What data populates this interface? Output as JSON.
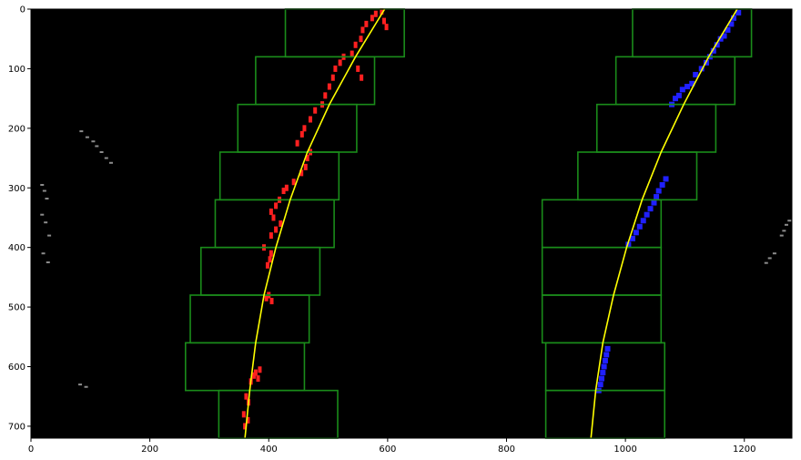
{
  "chart_data": {
    "type": "scatter",
    "title": "",
    "xlabel": "",
    "ylabel": "",
    "xlim": [
      0,
      1280
    ],
    "ylim": [
      720,
      0
    ],
    "x_ticks": [
      0,
      200,
      400,
      600,
      800,
      1000,
      1200
    ],
    "y_ticks": [
      0,
      100,
      200,
      300,
      400,
      500,
      600,
      700
    ],
    "x_tick_labels": [
      "0",
      "200",
      "400",
      "600",
      "800",
      "1000",
      "1200"
    ],
    "y_tick_labels": [
      "0",
      "100",
      "200",
      "300",
      "400",
      "500",
      "600",
      "700"
    ],
    "background_color": "#000000",
    "colors": {
      "left_pixels": "#ff2020",
      "right_pixels": "#2020ff",
      "windows": "#1a8c1a",
      "fit_line": "#ffff00",
      "noise": "#bbbbbb"
    },
    "search_windows": {
      "left": [
        [
          316,
          640,
          516,
          720
        ],
        [
          260,
          560,
          460,
          640
        ],
        [
          268,
          480,
          468,
          560
        ],
        [
          286,
          400,
          486,
          480
        ],
        [
          310,
          320,
          510,
          400
        ],
        [
          318,
          240,
          518,
          320
        ],
        [
          348,
          160,
          548,
          240
        ],
        [
          378,
          80,
          578,
          160
        ],
        [
          428,
          0,
          628,
          80
        ]
      ],
      "right": [
        [
          866,
          640,
          1066,
          720
        ],
        [
          866,
          560,
          1066,
          640
        ],
        [
          860,
          480,
          1060,
          560
        ],
        [
          860,
          400,
          1060,
          480
        ],
        [
          860,
          320,
          1060,
          400
        ],
        [
          920,
          240,
          1120,
          320
        ],
        [
          952,
          160,
          1152,
          240
        ],
        [
          984,
          80,
          1184,
          160
        ],
        [
          1012,
          0,
          1212,
          80
        ]
      ]
    },
    "fit_lines": {
      "left": {
        "x": [
          360,
          368,
          378,
          392,
          412,
          436,
          465,
          502,
          546,
          595
        ],
        "y": [
          720,
          640,
          560,
          480,
          400,
          320,
          240,
          160,
          80,
          0
        ]
      },
      "right": {
        "x": [
          942,
          950,
          962,
          980,
          1002,
          1028,
          1060,
          1098,
          1140,
          1188
        ],
        "y": [
          720,
          640,
          560,
          480,
          400,
          320,
          240,
          160,
          80,
          0
        ]
      }
    },
    "lane_pixels": {
      "left": [
        [
          360,
          700
        ],
        [
          365,
          690
        ],
        [
          358,
          680
        ],
        [
          366,
          660
        ],
        [
          362,
          650
        ],
        [
          370,
          625
        ],
        [
          375,
          615
        ],
        [
          378,
          610
        ],
        [
          385,
          605
        ],
        [
          382,
          620
        ],
        [
          405,
          490
        ],
        [
          400,
          480
        ],
        [
          396,
          485
        ],
        [
          398,
          430
        ],
        [
          402,
          420
        ],
        [
          404,
          410
        ],
        [
          392,
          400
        ],
        [
          404,
          380
        ],
        [
          412,
          370
        ],
        [
          420,
          360
        ],
        [
          408,
          350
        ],
        [
          404,
          340
        ],
        [
          412,
          330
        ],
        [
          418,
          320
        ],
        [
          425,
          305
        ],
        [
          430,
          300
        ],
        [
          442,
          290
        ],
        [
          455,
          275
        ],
        [
          462,
          265
        ],
        [
          465,
          250
        ],
        [
          470,
          240
        ],
        [
          448,
          225
        ],
        [
          456,
          210
        ],
        [
          460,
          200
        ],
        [
          470,
          185
        ],
        [
          478,
          170
        ],
        [
          490,
          160
        ],
        [
          495,
          145
        ],
        [
          502,
          130
        ],
        [
          508,
          115
        ],
        [
          512,
          100
        ],
        [
          520,
          90
        ],
        [
          526,
          80
        ],
        [
          540,
          75
        ],
        [
          546,
          60
        ],
        [
          555,
          50
        ],
        [
          558,
          35
        ],
        [
          564,
          25
        ],
        [
          574,
          15
        ],
        [
          580,
          8
        ],
        [
          590,
          4
        ],
        [
          594,
          20
        ],
        [
          598,
          30
        ],
        [
          550,
          100
        ],
        [
          556,
          115
        ]
      ],
      "right": [
        [
          955,
          640
        ],
        [
          958,
          630
        ],
        [
          960,
          620
        ],
        [
          962,
          610
        ],
        [
          964,
          600
        ],
        [
          966,
          590
        ],
        [
          968,
          580
        ],
        [
          970,
          570
        ],
        [
          1005,
          395
        ],
        [
          1012,
          385
        ],
        [
          1018,
          375
        ],
        [
          1024,
          365
        ],
        [
          1030,
          355
        ],
        [
          1036,
          345
        ],
        [
          1042,
          335
        ],
        [
          1048,
          325
        ],
        [
          1052,
          315
        ],
        [
          1056,
          305
        ],
        [
          1062,
          295
        ],
        [
          1068,
          285
        ],
        [
          1078,
          160
        ],
        [
          1084,
          150
        ],
        [
          1090,
          145
        ],
        [
          1096,
          135
        ],
        [
          1104,
          130
        ],
        [
          1112,
          125
        ],
        [
          1118,
          110
        ],
        [
          1128,
          100
        ],
        [
          1136,
          90
        ],
        [
          1142,
          80
        ],
        [
          1148,
          70
        ],
        [
          1154,
          60
        ],
        [
          1160,
          50
        ],
        [
          1166,
          45
        ],
        [
          1172,
          35
        ],
        [
          1178,
          25
        ],
        [
          1182,
          15
        ],
        [
          1190,
          6
        ]
      ]
    },
    "noise_pixels": [
      [
        84,
        205
      ],
      [
        94,
        215
      ],
      [
        104,
        222
      ],
      [
        110,
        230
      ],
      [
        118,
        240
      ],
      [
        126,
        250
      ],
      [
        134,
        258
      ],
      [
        18,
        295
      ],
      [
        22,
        305
      ],
      [
        26,
        318
      ],
      [
        18,
        345
      ],
      [
        24,
        358
      ],
      [
        30,
        380
      ],
      [
        20,
        410
      ],
      [
        28,
        425
      ],
      [
        82,
        630
      ],
      [
        92,
        634
      ],
      [
        1262,
        380
      ],
      [
        1266,
        372
      ],
      [
        1270,
        362
      ],
      [
        1275,
        355
      ],
      [
        1250,
        410
      ],
      [
        1242,
        418
      ],
      [
        1236,
        426
      ]
    ]
  }
}
